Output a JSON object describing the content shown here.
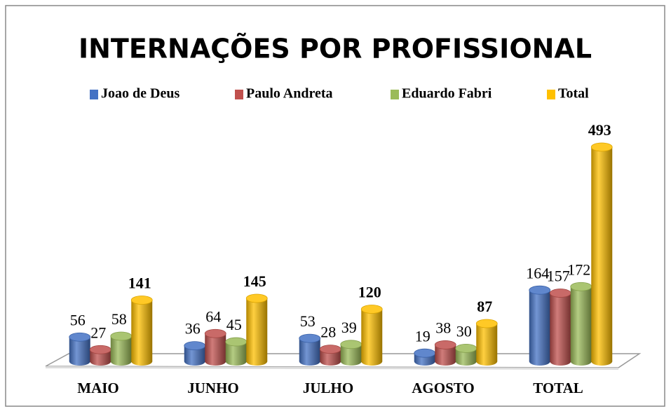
{
  "chart_data": {
    "type": "bar",
    "title": "INTERNAÇÕES POR PROFISSIONAL",
    "categories": [
      "MAIO",
      "JUNHO",
      "JULHO",
      "AGOSTO",
      "TOTAL"
    ],
    "series": [
      {
        "name": "Joao de Deus",
        "color": "#4472c4",
        "values": [
          56,
          36,
          53,
          19,
          164
        ]
      },
      {
        "name": "Paulo Andreta",
        "color": "#c0504d",
        "values": [
          27,
          64,
          28,
          38,
          157
        ]
      },
      {
        "name": "Eduardo Fabri",
        "color": "#9bbb59",
        "values": [
          58,
          45,
          39,
          30,
          172
        ]
      },
      {
        "name": "Total",
        "color": "#ffc000",
        "values": [
          141,
          145,
          120,
          87,
          493
        ]
      }
    ]
  }
}
